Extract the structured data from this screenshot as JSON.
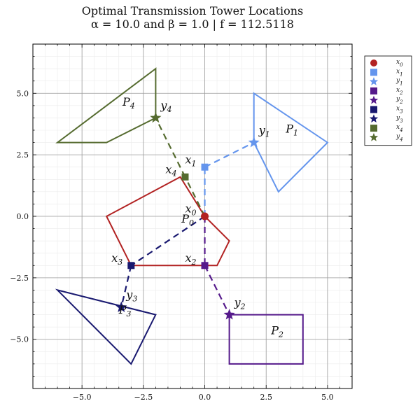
{
  "title_line1": "Optimal Transmission Tower Locations",
  "title_line2": "α = 10.0 and β = 1.0 | f = 112.5118",
  "chart_data": {
    "type": "scatter",
    "title": "Optimal Transmission Tower Locations",
    "subtitle": "α = 10.0 and β = 1.0 | f = 112.5118",
    "xlim": [
      -7,
      6
    ],
    "ylim": [
      -7,
      7
    ],
    "x_ticks": [
      -5.0,
      -2.5,
      0.0,
      2.5,
      5.0
    ],
    "y_ticks": [
      -5.0,
      -2.5,
      0.0,
      2.5,
      5.0
    ],
    "x_tick_labels": [
      "−5.0",
      "−2.5",
      "0.0",
      "2.5",
      "5.0"
    ],
    "y_tick_labels": [
      "−5.0",
      "−2.5",
      "0.0",
      "2.5",
      "5.0"
    ],
    "grid": true,
    "minor_grid": true,
    "legend_position": "top-right",
    "regions": [
      {
        "name": "P",
        "index": "0",
        "color": "#b22222",
        "vertices": [
          [
            0,
            0
          ],
          [
            1,
            -1
          ],
          [
            0.5,
            -2
          ],
          [
            -3,
            -2
          ],
          [
            -4,
            0
          ],
          [
            -1,
            1.6
          ]
        ],
        "label_at": [
          -0.95,
          -0.25
        ]
      },
      {
        "name": "P",
        "index": "1",
        "color": "#6495ed",
        "vertices": [
          [
            2,
            5
          ],
          [
            5,
            3
          ],
          [
            3,
            1
          ],
          [
            2,
            3
          ]
        ],
        "label_at": [
          3.3,
          3.4
        ]
      },
      {
        "name": "P",
        "index": "2",
        "color": "#551a8b",
        "vertices": [
          [
            1,
            -4
          ],
          [
            4,
            -4
          ],
          [
            4,
            -6
          ],
          [
            1,
            -6
          ]
        ],
        "label_at": [
          2.7,
          -4.8
        ]
      },
      {
        "name": "P",
        "index": "3",
        "color": "#191970",
        "vertices": [
          [
            -6,
            -3
          ],
          [
            -2,
            -4
          ],
          [
            -3,
            -6
          ]
        ],
        "label_at": [
          -3.5,
          -3.95
        ]
      },
      {
        "name": "P",
        "index": "4",
        "color": "#556b2f",
        "vertices": [
          [
            -6,
            3
          ],
          [
            -4,
            3
          ],
          [
            -2,
            4
          ],
          [
            -2,
            6
          ],
          [
            -6,
            3
          ]
        ],
        "label_at": [
          -3.35,
          4.5
        ]
      }
    ],
    "towers": [
      {
        "name": "x",
        "index": "0",
        "color": "#b22222",
        "x": 0,
        "y": 0,
        "label_at": [
          -0.8,
          0.15
        ]
      },
      {
        "name": "x",
        "index": "1",
        "color": "#6495ed",
        "x": 0,
        "y": 2,
        "label_at": [
          -0.8,
          2.15
        ]
      },
      {
        "name": "x",
        "index": "2",
        "color": "#551a8b",
        "x": 0,
        "y": -2,
        "label_at": [
          -0.8,
          -1.85
        ]
      },
      {
        "name": "x",
        "index": "3",
        "color": "#191970",
        "x": -3,
        "y": -2,
        "label_at": [
          -3.8,
          -1.85
        ]
      },
      {
        "name": "x",
        "index": "4",
        "color": "#556b2f",
        "x": -0.8,
        "y": 1.6,
        "label_at": [
          -1.6,
          1.75
        ]
      }
    ],
    "stars": [
      {
        "name": "y",
        "index": "1",
        "color": "#6495ed",
        "x": 2,
        "y": 3,
        "label_at": [
          2.2,
          3.35
        ]
      },
      {
        "name": "y",
        "index": "2",
        "color": "#551a8b",
        "x": 1,
        "y": -4,
        "label_at": [
          1.2,
          -3.65
        ]
      },
      {
        "name": "y",
        "index": "3",
        "color": "#191970",
        "x": -3.4,
        "y": -3.7,
        "label_at": [
          -3.2,
          -3.35
        ]
      },
      {
        "name": "y",
        "index": "4",
        "color": "#556b2f",
        "x": -2,
        "y": 4,
        "label_at": [
          -1.8,
          4.35
        ]
      }
    ],
    "links": [
      {
        "from": [
          0,
          2
        ],
        "to": [
          2,
          3
        ],
        "color": "#6495ed"
      },
      {
        "from": [
          0,
          0
        ],
        "to": [
          0,
          2
        ],
        "color": "#6495ed"
      },
      {
        "from": [
          0,
          0
        ],
        "to": [
          0,
          -2
        ],
        "color": "#551a8b"
      },
      {
        "from": [
          0,
          -2
        ],
        "to": [
          1,
          -4
        ],
        "color": "#551a8b"
      },
      {
        "from": [
          0,
          0
        ],
        "to": [
          -3,
          -2
        ],
        "color": "#191970"
      },
      {
        "from": [
          -3,
          -2
        ],
        "to": [
          -3.4,
          -3.7
        ],
        "color": "#191970"
      },
      {
        "from": [
          0,
          0
        ],
        "to": [
          -0.8,
          1.6
        ],
        "color": "#556b2f"
      },
      {
        "from": [
          -0.8,
          1.6
        ],
        "to": [
          -2,
          4
        ],
        "color": "#556b2f"
      }
    ],
    "legend": [
      {
        "marker": "circle",
        "color": "#b22222",
        "name": "x",
        "index": "0"
      },
      {
        "marker": "square",
        "color": "#6495ed",
        "name": "x",
        "index": "1"
      },
      {
        "marker": "star",
        "color": "#6495ed",
        "name": "y",
        "index": "1"
      },
      {
        "marker": "square",
        "color": "#551a8b",
        "name": "x",
        "index": "2"
      },
      {
        "marker": "star",
        "color": "#551a8b",
        "name": "y",
        "index": "2"
      },
      {
        "marker": "square",
        "color": "#191970",
        "name": "x",
        "index": "3"
      },
      {
        "marker": "star",
        "color": "#191970",
        "name": "y",
        "index": "3"
      },
      {
        "marker": "square",
        "color": "#556b2f",
        "name": "x",
        "index": "4"
      },
      {
        "marker": "star",
        "color": "#556b2f",
        "name": "y",
        "index": "4"
      }
    ]
  }
}
